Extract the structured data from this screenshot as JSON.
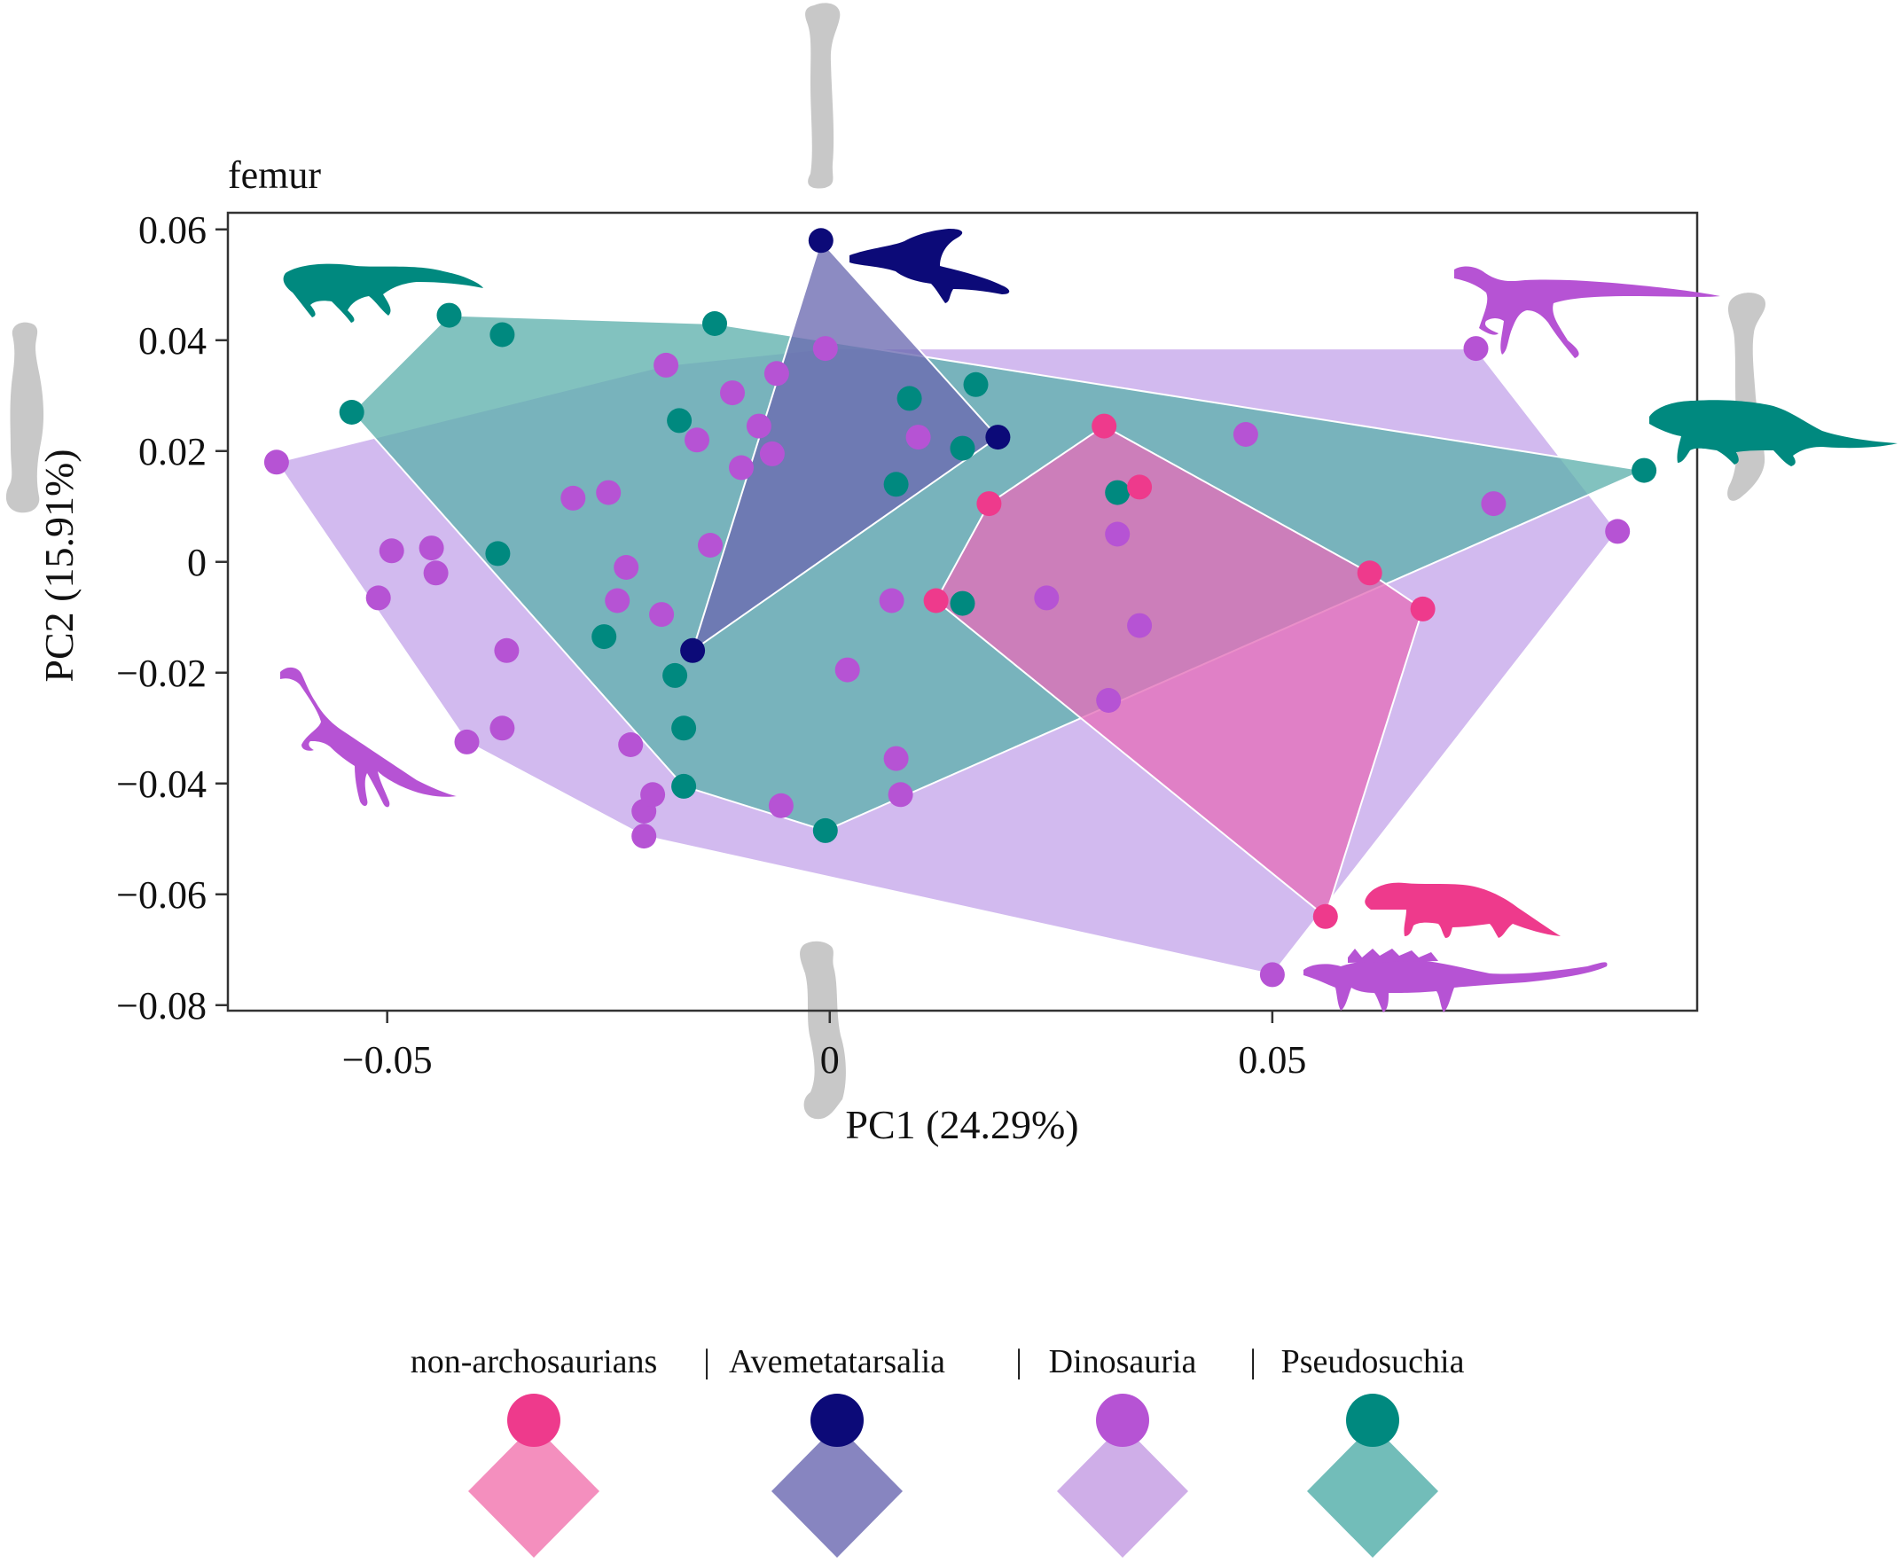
{
  "chart_data": {
    "type": "scatter",
    "title": "femur",
    "xlabel": "PC1 (24.29%)",
    "ylabel": "PC2 (15.91%)",
    "xlim": [
      -0.068,
      0.098
    ],
    "ylim": [
      -0.081,
      0.063
    ],
    "xticks": [
      {
        "value": -0.05,
        "label": "−0.05"
      },
      {
        "value": 0,
        "label": "0"
      },
      {
        "value": 0.05,
        "label": "0.05"
      }
    ],
    "yticks": [
      {
        "value": 0.06,
        "label": "0.06"
      },
      {
        "value": 0.04,
        "label": "0.04"
      },
      {
        "value": 0.02,
        "label": "0.02"
      },
      {
        "value": 0,
        "label": "0"
      },
      {
        "value": -0.02,
        "label": "−0.02"
      },
      {
        "value": -0.04,
        "label": "−0.04"
      },
      {
        "value": -0.06,
        "label": "−0.06"
      },
      {
        "value": -0.08,
        "label": "−0.08"
      }
    ],
    "grid": false,
    "legend_position": "bottom",
    "series": [
      {
        "name": "Dinosauria",
        "color": "#b653d4",
        "hull_color": "#c5a6ea",
        "points": [
          [
            -0.0625,
            0.018
          ],
          [
            -0.0495,
            0.002
          ],
          [
            -0.051,
            -0.0065
          ],
          [
            -0.045,
            0.0025
          ],
          [
            -0.0445,
            -0.002
          ],
          [
            -0.041,
            -0.0325
          ],
          [
            -0.037,
            -0.03
          ],
          [
            -0.0365,
            -0.016
          ],
          [
            -0.029,
            0.0115
          ],
          [
            -0.025,
            0.0125
          ],
          [
            -0.024,
            -0.007
          ],
          [
            -0.023,
            -0.001
          ],
          [
            -0.0225,
            -0.033
          ],
          [
            -0.021,
            -0.045
          ],
          [
            -0.02,
            -0.042
          ],
          [
            -0.021,
            -0.0495
          ],
          [
            -0.019,
            -0.0095
          ],
          [
            -0.0185,
            0.0355
          ],
          [
            -0.015,
            0.022
          ],
          [
            -0.0135,
            0.003
          ],
          [
            -0.011,
            0.0305
          ],
          [
            -0.01,
            0.017
          ],
          [
            -0.008,
            0.0245
          ],
          [
            -0.0065,
            0.0195
          ],
          [
            -0.006,
            0.034
          ],
          [
            -0.0055,
            -0.044
          ],
          [
            -0.0005,
            0.0385
          ],
          [
            0.002,
            -0.0195
          ],
          [
            0.007,
            -0.007
          ],
          [
            0.0075,
            -0.0355
          ],
          [
            0.008,
            -0.042
          ],
          [
            0.01,
            0.0225
          ],
          [
            0.0245,
            -0.0065
          ],
          [
            0.0315,
            -0.025
          ],
          [
            0.0325,
            0.005
          ],
          [
            0.035,
            -0.0115
          ],
          [
            0.047,
            0.023
          ],
          [
            0.05,
            -0.0745
          ],
          [
            0.073,
            0.0385
          ],
          [
            0.075,
            0.0105
          ],
          [
            0.089,
            0.0055
          ]
        ]
      },
      {
        "name": "Pseudosuchia",
        "color": "#00897f",
        "hull_color": "#5fb1ad",
        "points": [
          [
            -0.054,
            0.027
          ],
          [
            -0.043,
            0.0445
          ],
          [
            -0.037,
            0.041
          ],
          [
            -0.0375,
            0.0015
          ],
          [
            -0.0255,
            -0.0135
          ],
          [
            -0.0175,
            -0.0205
          ],
          [
            -0.0165,
            -0.03
          ],
          [
            -0.017,
            0.0255
          ],
          [
            -0.0165,
            -0.0405
          ],
          [
            -0.013,
            0.043
          ],
          [
            -0.0005,
            -0.0485
          ],
          [
            0.0075,
            0.014
          ],
          [
            0.009,
            0.0295
          ],
          [
            0.015,
            -0.0075
          ],
          [
            0.015,
            0.0205
          ],
          [
            0.0165,
            0.032
          ],
          [
            0.0325,
            0.0125
          ],
          [
            0.092,
            0.0165
          ]
        ]
      },
      {
        "name": "non-archosaurians",
        "color": "#ee3a8c",
        "hull_color": "#e46fba",
        "points": [
          [
            0.012,
            -0.007
          ],
          [
            0.018,
            0.0105
          ],
          [
            0.031,
            0.0245
          ],
          [
            0.035,
            0.0135
          ],
          [
            0.061,
            -0.002
          ],
          [
            0.067,
            -0.0085
          ],
          [
            0.056,
            -0.064
          ]
        ]
      },
      {
        "name": "Avemetatarsalia",
        "color": "#0c0a78",
        "hull_color": "#6b6ab1",
        "points": [
          [
            -0.001,
            0.058
          ],
          [
            0.019,
            0.0225
          ],
          [
            -0.0155,
            -0.016
          ]
        ]
      }
    ]
  },
  "silhouettes": [
    {
      "name": "pseudosuchian-top-left-silhouette",
      "color": "#00897f"
    },
    {
      "name": "pterosaur-silhouette",
      "color": "#0c0a78"
    },
    {
      "name": "theropod-silhouette",
      "color": "#b653d4"
    },
    {
      "name": "pseudosuchian-right-silhouette",
      "color": "#00897f"
    },
    {
      "name": "sauropodomorph-silhouette",
      "color": "#b653d4"
    },
    {
      "name": "non-archosaur-silhouette",
      "color": "#ee3a8c"
    },
    {
      "name": "ankylosaur-silhouette",
      "color": "#b653d4"
    }
  ],
  "femur_shapes_color": "#c8c8c8",
  "legend": {
    "separator": "|",
    "entries": [
      {
        "label": "non-archosaurians",
        "point_color": "#ee3a8c",
        "hull_color": "#f48fbe"
      },
      {
        "label": "Avemetatarsalia",
        "point_color": "#0c0a78",
        "hull_color": "#8785c0"
      },
      {
        "label": "Dinosauria",
        "point_color": "#b653d4",
        "hull_color": "#cfaee8"
      },
      {
        "label": "Pseudosuchia",
        "point_color": "#00897f",
        "hull_color": "#72bdb9"
      }
    ]
  }
}
